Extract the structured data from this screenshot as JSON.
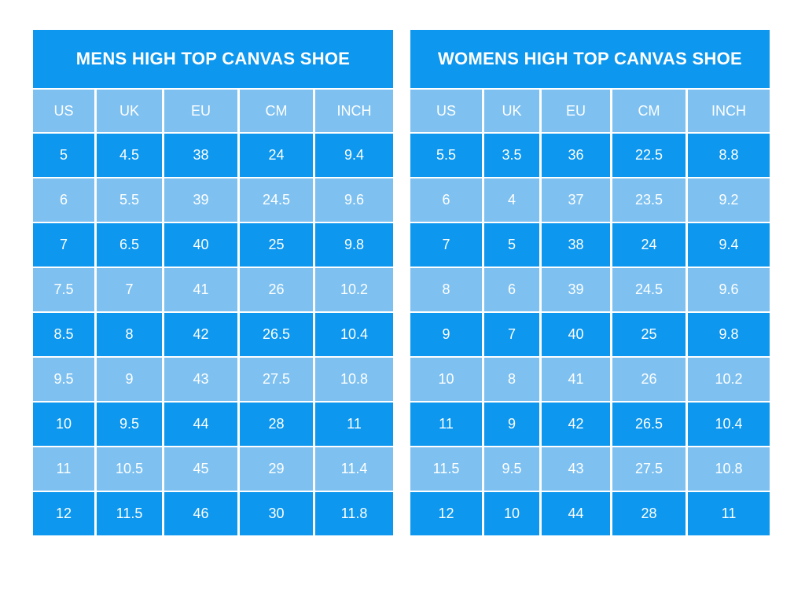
{
  "colors": {
    "dark_blue": "#0d97ee",
    "light_blue": "#7ec1f1",
    "text": "#ffffff",
    "background": "#ffffff"
  },
  "chart_data": [
    {
      "type": "table",
      "title": "MENS HIGH TOP CANVAS SHOE",
      "columns": [
        "US",
        "UK",
        "EU",
        "CM",
        "INCH"
      ],
      "rows": [
        [
          "5",
          "4.5",
          "38",
          "24",
          "9.4"
        ],
        [
          "6",
          "5.5",
          "39",
          "24.5",
          "9.6"
        ],
        [
          "7",
          "6.5",
          "40",
          "25",
          "9.8"
        ],
        [
          "7.5",
          "7",
          "41",
          "26",
          "10.2"
        ],
        [
          "8.5",
          "8",
          "42",
          "26.5",
          "10.4"
        ],
        [
          "9.5",
          "9",
          "43",
          "27.5",
          "10.8"
        ],
        [
          "10",
          "9.5",
          "44",
          "28",
          "11"
        ],
        [
          "11",
          "10.5",
          "45",
          "29",
          "11.4"
        ],
        [
          "12",
          "11.5",
          "46",
          "30",
          "11.8"
        ]
      ]
    },
    {
      "type": "table",
      "title": "WOMENS HIGH TOP CANVAS SHOE",
      "columns": [
        "US",
        "UK",
        "EU",
        "CM",
        "INCH"
      ],
      "rows": [
        [
          "5.5",
          "3.5",
          "36",
          "22.5",
          "8.8"
        ],
        [
          "6",
          "4",
          "37",
          "23.5",
          "9.2"
        ],
        [
          "7",
          "5",
          "38",
          "24",
          "9.4"
        ],
        [
          "8",
          "6",
          "39",
          "24.5",
          "9.6"
        ],
        [
          "9",
          "7",
          "40",
          "25",
          "9.8"
        ],
        [
          "10",
          "8",
          "41",
          "26",
          "10.2"
        ],
        [
          "11",
          "9",
          "42",
          "26.5",
          "10.4"
        ],
        [
          "11.5",
          "9.5",
          "43",
          "27.5",
          "10.8"
        ],
        [
          "12",
          "10",
          "44",
          "28",
          "11"
        ]
      ]
    }
  ]
}
